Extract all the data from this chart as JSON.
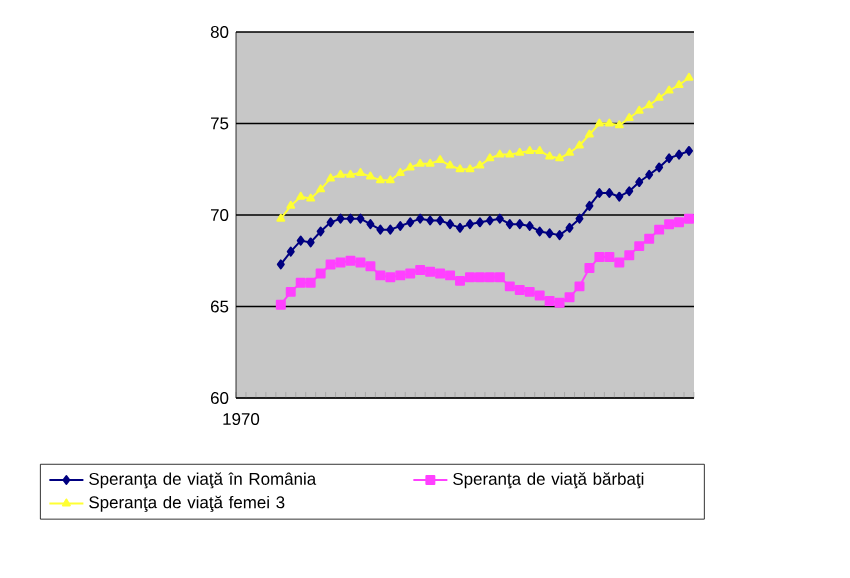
{
  "chart_data": {
    "type": "line",
    "categories": [
      "1970",
      null,
      null,
      null,
      null,
      null,
      null,
      null,
      null,
      null,
      null,
      null,
      null,
      null,
      null,
      null,
      null,
      null,
      null,
      null,
      null,
      null,
      null,
      null,
      null,
      null,
      null,
      null,
      null,
      null,
      null,
      null,
      null,
      null,
      null,
      null,
      null,
      null,
      null,
      null,
      null,
      null,
      null,
      null,
      null,
      null
    ],
    "ylim": [
      60,
      80
    ],
    "yticks": [
      60,
      65,
      70,
      75,
      80
    ],
    "grid": "y",
    "legend": "bottom",
    "line_style": "solid",
    "series": [
      {
        "name": "Speranţa de viaţă în România",
        "color": "#000080",
        "marker": "diamond",
        "values": [
          null,
          null,
          null,
          null,
          67.3,
          68.0,
          68.6,
          68.5,
          69.1,
          69.6,
          69.8,
          69.8,
          69.8,
          69.5,
          69.2,
          69.2,
          69.4,
          69.6,
          69.8,
          69.7,
          69.7,
          69.5,
          69.3,
          69.5,
          69.6,
          69.7,
          69.8,
          69.5,
          69.5,
          69.4,
          69.1,
          69.0,
          68.9,
          69.3,
          69.8,
          70.5,
          71.2,
          71.2,
          71.0,
          71.3,
          71.8,
          72.2,
          72.6,
          73.1,
          73.3,
          73.5
        ]
      },
      {
        "name": "Speranţa de viaţă bărbaţi",
        "color": "#ff40ff",
        "marker": "square",
        "values": [
          null,
          null,
          null,
          null,
          65.1,
          65.8,
          66.3,
          66.3,
          66.8,
          67.3,
          67.4,
          67.5,
          67.4,
          67.2,
          66.7,
          66.6,
          66.7,
          66.8,
          67.0,
          66.9,
          66.8,
          66.7,
          66.4,
          66.6,
          66.6,
          66.6,
          66.6,
          66.1,
          65.9,
          65.8,
          65.6,
          65.3,
          65.2,
          65.5,
          66.1,
          67.1,
          67.7,
          67.7,
          67.4,
          67.8,
          68.3,
          68.7,
          69.2,
          69.5,
          69.6,
          69.8
        ]
      },
      {
        "name": "Speranţa de viaţă femei 3",
        "color": "#ffff33",
        "marker": "triangle",
        "values": [
          null,
          null,
          null,
          null,
          69.8,
          70.5,
          71.0,
          70.9,
          71.4,
          72.0,
          72.2,
          72.2,
          72.3,
          72.1,
          71.9,
          71.9,
          72.3,
          72.6,
          72.8,
          72.8,
          73.0,
          72.7,
          72.5,
          72.5,
          72.7,
          73.1,
          73.3,
          73.3,
          73.4,
          73.5,
          73.5,
          73.2,
          73.1,
          73.4,
          73.8,
          74.4,
          75.0,
          75.0,
          74.9,
          75.3,
          75.7,
          76.0,
          76.4,
          76.8,
          77.1,
          77.5
        ]
      }
    ]
  }
}
